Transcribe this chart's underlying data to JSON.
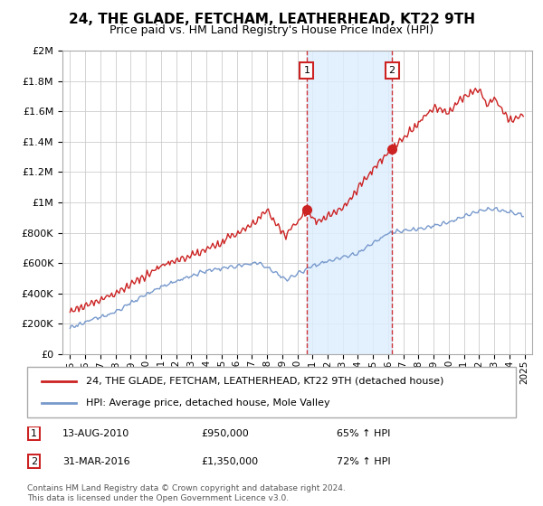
{
  "title": "24, THE GLADE, FETCHAM, LEATHERHEAD, KT22 9TH",
  "subtitle": "Price paid vs. HM Land Registry's House Price Index (HPI)",
  "legend_line1": "24, THE GLADE, FETCHAM, LEATHERHEAD, KT22 9TH (detached house)",
  "legend_line2": "HPI: Average price, detached house, Mole Valley",
  "footer": "Contains HM Land Registry data © Crown copyright and database right 2024.\nThis data is licensed under the Open Government Licence v3.0.",
  "annotation1_label": "1",
  "annotation1_date": "13-AUG-2010",
  "annotation1_price": "£950,000",
  "annotation1_hpi": "65% ↑ HPI",
  "annotation2_label": "2",
  "annotation2_date": "31-MAR-2016",
  "annotation2_price": "£1,350,000",
  "annotation2_hpi": "72% ↑ HPI",
  "sale1_x": 2010.62,
  "sale1_y": 950000,
  "sale2_x": 2016.25,
  "sale2_y": 1350000,
  "dashed_line1_x": 2010.62,
  "dashed_line2_x": 2016.25,
  "red_color": "#cc2222",
  "blue_color": "#7799cc",
  "shade_color": "#ddeeff",
  "background_color": "#ffffff",
  "grid_color": "#cccccc",
  "ylim": [
    0,
    2000000
  ],
  "xlim": [
    1994.5,
    2025.5
  ],
  "title_fontsize": 11,
  "subtitle_fontsize": 9
}
